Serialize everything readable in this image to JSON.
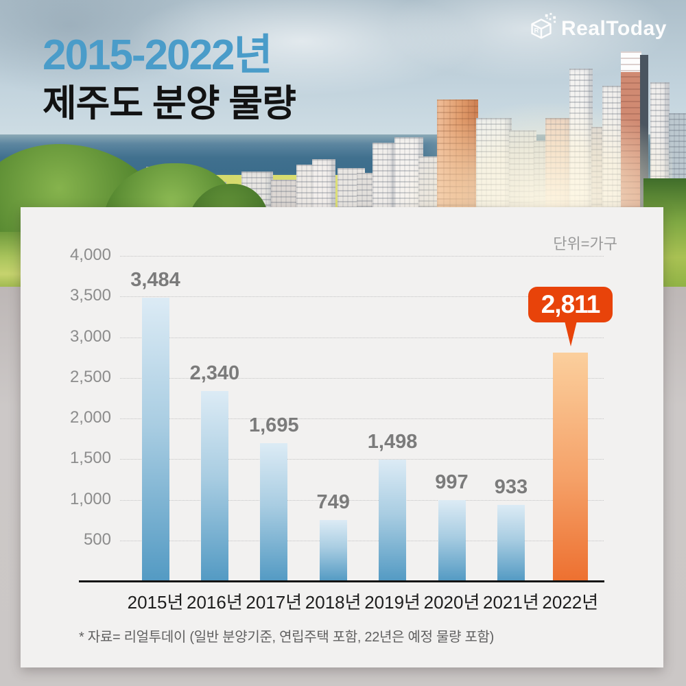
{
  "header": {
    "title_line1": "2015-2022년",
    "title_line2": "제주도 분양 물량",
    "logo_text": "RealToday"
  },
  "chart": {
    "unit_label": "단위=가구",
    "footnote": "* 자료= 리얼투데이 (일반 분양기준, 연립주택 포함, 22년은 예정 물량 포함)",
    "highlight_badge": "2,811"
  },
  "chart_data": {
    "type": "bar",
    "title": "2015-2022년 제주도 분양 물량",
    "unit": "가구",
    "categories": [
      "2015년",
      "2016년",
      "2017년",
      "2018년",
      "2019년",
      "2020년",
      "2021년",
      "2022년"
    ],
    "values": [
      3484,
      2340,
      1695,
      749,
      1498,
      997,
      933,
      2811
    ],
    "value_labels": [
      "3,484",
      "2,340",
      "1,695",
      "749",
      "1,498",
      "997",
      "933",
      "2,811"
    ],
    "highlight_index": 7,
    "ylim": [
      0,
      4000
    ],
    "y_ticks": [
      4000,
      3500,
      3000,
      2500,
      2000,
      1500,
      1000,
      500
    ],
    "y_tick_labels": [
      "4,000",
      "3,500",
      "3,000",
      "2,500",
      "2,000",
      "1,500",
      "1,000",
      "500"
    ],
    "grid": true,
    "legend": false,
    "colors": {
      "bar_top": "#dcebf5",
      "bar_bottom": "#539ac3",
      "highlight_top": "#fbcf9d",
      "highlight_bottom": "#ed7030",
      "badge": "#e8430a",
      "title_accent": "#4a9cc9"
    }
  }
}
